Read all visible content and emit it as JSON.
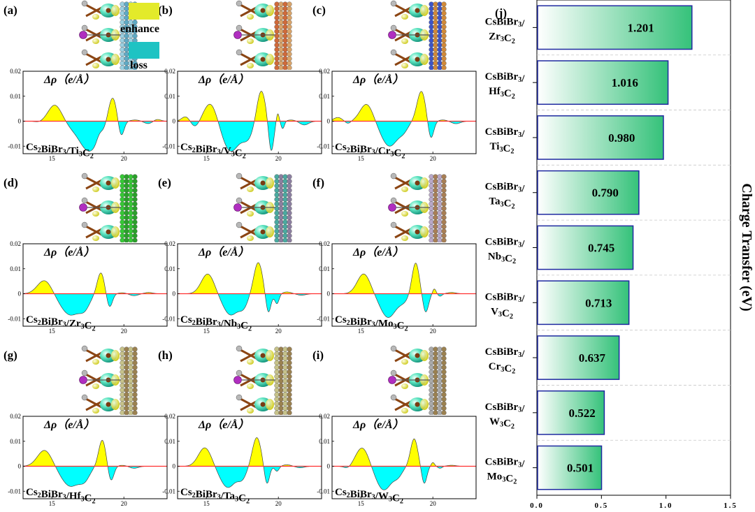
{
  "chart_data": [
    {
      "type": "area",
      "panels": [
        {
          "letter": "(a)",
          "formula": "Cs₂BiBr₃/Ti₃C₂",
          "peaks": [
            [
              14.1,
              -0.0004,
              0.25
            ],
            [
              15.2,
              0.0065,
              0.45
            ],
            [
              16.3,
              -0.0006,
              0.3
            ],
            [
              17.6,
              -0.012,
              0.75
            ],
            [
              18.3,
              0.0025,
              0.2
            ],
            [
              19.2,
              0.0105,
              0.3
            ],
            [
              19.8,
              -0.0065,
              0.2
            ],
            [
              20.8,
              0.0005,
              0.35
            ],
            [
              21.7,
              -0.001,
              0.3
            ],
            [
              22.3,
              0.0008,
              0.25
            ]
          ]
        },
        {
          "letter": "(b)",
          "formula": "Cs₂BiBr₃/V₃C₂",
          "peaks": [
            [
              13.6,
              0.002,
              0.3
            ],
            [
              14.2,
              -0.0025,
              0.3
            ],
            [
              15.3,
              0.0075,
              0.45
            ],
            [
              16.7,
              -0.012,
              0.6
            ],
            [
              17.9,
              -0.006,
              0.4
            ],
            [
              18.8,
              0.0125,
              0.3
            ],
            [
              19.5,
              -0.0125,
              0.18
            ],
            [
              19.95,
              0.0035,
              0.1
            ],
            [
              20.3,
              -0.003,
              0.12
            ],
            [
              20.9,
              0.0005,
              0.3
            ],
            [
              21.8,
              -0.0015,
              0.3
            ]
          ]
        },
        {
          "letter": "(c)",
          "formula": "Cs₂BiBr₃/Cr₃C₂",
          "peaks": [
            [
              13.4,
              0.0015,
              0.3
            ],
            [
              14.1,
              -0.001,
              0.2
            ],
            [
              15.4,
              0.007,
              0.45
            ],
            [
              17.0,
              -0.01,
              0.6
            ],
            [
              18.0,
              -0.0025,
              0.3
            ],
            [
              19.2,
              0.012,
              0.3
            ],
            [
              19.85,
              -0.0075,
              0.2
            ],
            [
              20.7,
              0.0005,
              0.3
            ],
            [
              21.6,
              -0.001,
              0.3
            ]
          ]
        },
        {
          "letter": "(d)",
          "formula": "Cs₂BiBr₃/Zr₃C₂",
          "peaks": [
            [
              14.5,
              0.0055,
              0.5
            ],
            [
              16.3,
              -0.0085,
              0.7
            ],
            [
              17.3,
              -0.004,
              0.35
            ],
            [
              18.4,
              0.0085,
              0.25
            ],
            [
              19.0,
              -0.0055,
              0.2
            ],
            [
              19.9,
              0.0004,
              0.3
            ],
            [
              20.7,
              -0.0008,
              0.3
            ],
            [
              21.7,
              0.0005,
              0.3
            ]
          ]
        },
        {
          "letter": "(e)",
          "formula": "Cs₂BiBr₃/Nb₃C₂",
          "peaks": [
            [
              15.1,
              0.008,
              0.45
            ],
            [
              16.7,
              -0.0085,
              0.55
            ],
            [
              17.6,
              -0.004,
              0.3
            ],
            [
              18.6,
              0.0125,
              0.3
            ],
            [
              19.3,
              -0.008,
              0.18
            ],
            [
              19.9,
              -0.004,
              0.15
            ],
            [
              20.6,
              0.0007,
              0.3
            ],
            [
              21.6,
              -0.0006,
              0.3
            ]
          ]
        },
        {
          "letter": "(f)",
          "formula": "Cs₂BiBr₃/Mo₃C₂",
          "peaks": [
            [
              15.2,
              0.008,
              0.45
            ],
            [
              16.9,
              -0.0095,
              0.55
            ],
            [
              18.0,
              -0.0025,
              0.35
            ],
            [
              18.8,
              0.0125,
              0.25
            ],
            [
              19.5,
              -0.0075,
              0.2
            ],
            [
              20.1,
              0.002,
              0.12
            ],
            [
              20.5,
              -0.001,
              0.15
            ],
            [
              21.3,
              0.0005,
              0.3
            ]
          ]
        },
        {
          "letter": "(g)",
          "formula": "Cs₂BiBr₃/Hf₃C₂",
          "peaks": [
            [
              14.5,
              0.0065,
              0.5
            ],
            [
              16.3,
              -0.008,
              0.65
            ],
            [
              17.3,
              -0.004,
              0.35
            ],
            [
              18.5,
              0.0105,
              0.25
            ],
            [
              19.1,
              -0.006,
              0.2
            ],
            [
              19.9,
              0.0004,
              0.3
            ],
            [
              20.7,
              -0.0008,
              0.3
            ]
          ]
        },
        {
          "letter": "(h)",
          "formula": "Cs₂BiBr₃/Ta₃C₂",
          "peaks": [
            [
              14.9,
              0.0075,
              0.45
            ],
            [
              16.5,
              -0.0085,
              0.55
            ],
            [
              17.5,
              -0.004,
              0.3
            ],
            [
              18.5,
              0.0115,
              0.3
            ],
            [
              19.2,
              -0.0075,
              0.18
            ],
            [
              19.9,
              -0.002,
              0.15
            ],
            [
              20.6,
              0.0006,
              0.3
            ],
            [
              21.5,
              -0.0006,
              0.3
            ]
          ]
        },
        {
          "letter": "(i)",
          "formula": "Cs₂BiBr₃/W₃C₂",
          "peaks": [
            [
              14.1,
              -0.001,
              0.25
            ],
            [
              15.1,
              0.0075,
              0.45
            ],
            [
              16.6,
              -0.0095,
              0.55
            ],
            [
              17.6,
              -0.003,
              0.3
            ],
            [
              18.7,
              0.011,
              0.25
            ],
            [
              19.4,
              -0.007,
              0.18
            ],
            [
              20.0,
              0.0015,
              0.12
            ],
            [
              20.5,
              -0.0008,
              0.15
            ],
            [
              21.3,
              0.0004,
              0.3
            ]
          ]
        }
      ],
      "ylabel": "Δρ（e/Å）",
      "xlim": [
        13,
        23
      ],
      "ylim": [
        -0.013,
        0.02
      ],
      "yticks": [
        0.02,
        0.01,
        0,
        -0.01
      ],
      "yticklabels": [
        "0.02",
        "0.01",
        "0",
        "-0.01"
      ],
      "xticks": [
        15,
        20
      ],
      "xticklabels": [
        "15",
        "20"
      ],
      "positive_color": "#ffff00",
      "negative_color": "#00ffff",
      "line_color": "#ff3030",
      "legend": [
        {
          "label": "enhance",
          "color": "#e3ea2a"
        },
        {
          "label": "loss",
          "color": "#1ec3c3"
        }
      ]
    },
    {
      "type": "bar",
      "panel_label": "(j)",
      "orientation": "horizontal",
      "categories": [
        [
          "CsBiBr₃/",
          "Zr₃C₂"
        ],
        [
          "CsBiBr₃/",
          "Hf₃C₂"
        ],
        [
          "CsBiBr₃/",
          "Ti₃C₂"
        ],
        [
          "CsBiBr₃/",
          "Ta₃C₂"
        ],
        [
          "CsBiBr₃/",
          "Nb₃C₂"
        ],
        [
          "CsBiBr₃/",
          "V₃C₂"
        ],
        [
          "CsBiBr₃/",
          "Cr₃C₂"
        ],
        [
          "CsBiBr₃/",
          "W₃C₂"
        ],
        [
          "CsBiBr₃/",
          "Mo₃C₂"
        ]
      ],
      "values": [
        1.201,
        1.016,
        0.98,
        0.79,
        0.745,
        0.713,
        0.637,
        0.522,
        0.501
      ],
      "value_labels": [
        "1.201",
        "1.016",
        "0.980",
        "0.790",
        "0.745",
        "0.713",
        "0.637",
        "0.522",
        "0.501"
      ],
      "xlim": [
        0,
        1.5
      ],
      "xticks": [
        0.0,
        0.5,
        1.0,
        1.5
      ],
      "xticklabels": [
        "0.0",
        "0.5",
        "1.0",
        "1.5"
      ],
      "ylabel_right": "Charge Transfer (eV)",
      "bar_edge_color": "#1f2aa0",
      "bar_gradient": [
        "#ffffff",
        "#35c27a"
      ],
      "grid": "dashed-horizontal"
    }
  ]
}
